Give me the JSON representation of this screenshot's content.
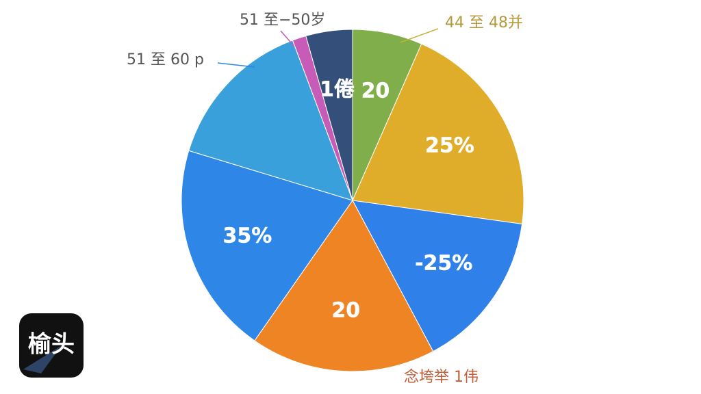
{
  "chart_data": {
    "type": "pie",
    "series": [
      {
        "name": null,
        "color": "#7fae4a",
        "values": [
          6.6
        ]
      },
      {
        "name": null,
        "color": "#e0ad2a",
        "values": [
          20.6
        ]
      },
      {
        "name": null,
        "color": "#2f80e8",
        "values": [
          15
        ]
      },
      {
        "name": null,
        "color": "#ef8424",
        "values": [
          17.5
        ]
      },
      {
        "name": null,
        "color": "#2e86e6",
        "values": [
          20
        ]
      },
      {
        "name": null,
        "color": "#3aa0dc",
        "values": [
          14.6
        ]
      },
      {
        "name": null,
        "color": "#c75bb8",
        "values": [
          1.3
        ]
      },
      {
        "name": null,
        "color": "#34507a",
        "values": [
          4.4
        ]
      }
    ],
    "inner_labels": [
      "20",
      "25%",
      "-25%",
      "20",
      "35%",
      null,
      null,
      "1倦"
    ],
    "callouts": [
      "44 至 48并",
      "51 至−50岁",
      "51 至 60 p",
      "念垮举 1伟"
    ]
  },
  "logo": "榆头"
}
